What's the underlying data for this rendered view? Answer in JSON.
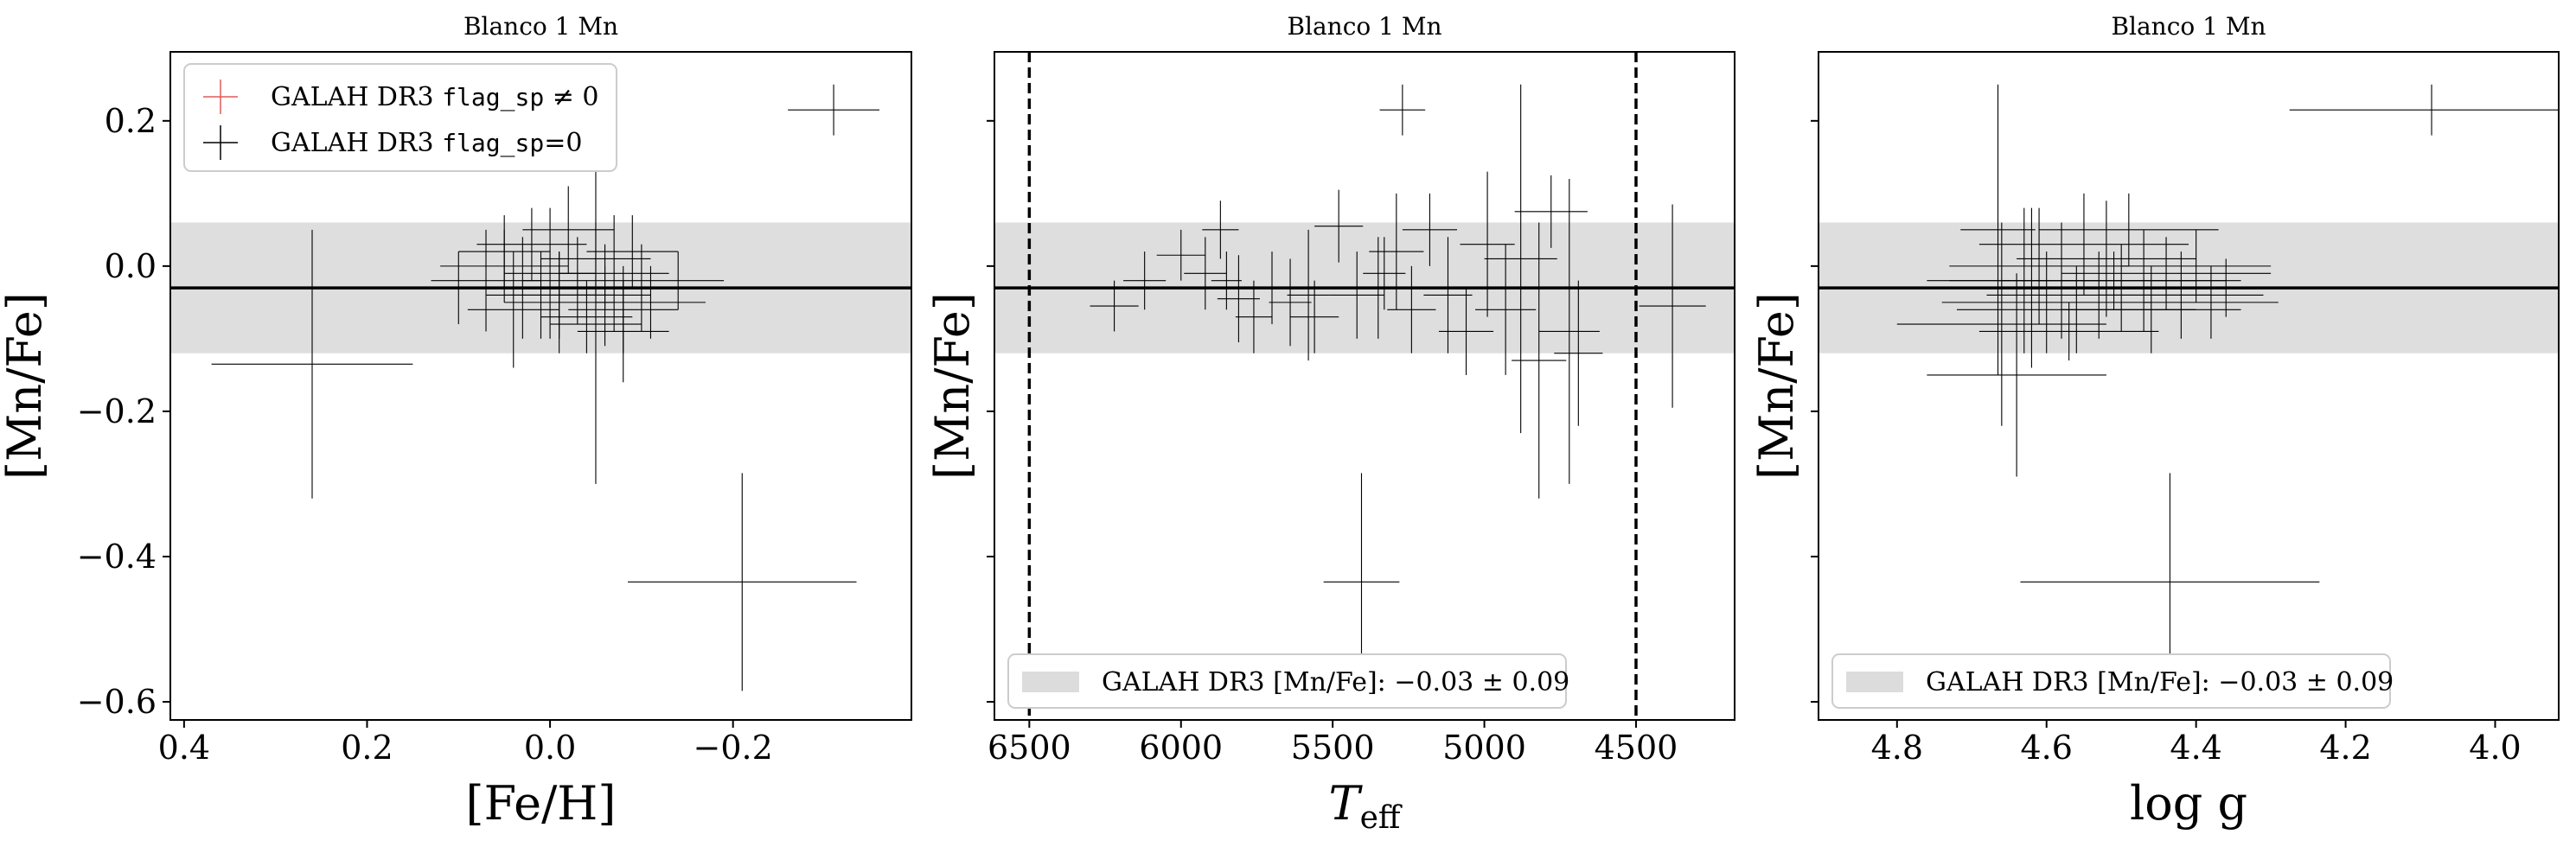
{
  "panels": [
    {
      "title": "Blanco 1 Mn",
      "xlabel": "[Fe/H]",
      "ylabel": "[Mn/Fe]",
      "xticks": [
        0.4,
        0.2,
        0.0,
        -0.2
      ],
      "xtick_labels": [
        "0.4",
        "0.2",
        "0.0",
        "−0.2"
      ],
      "yticks": [
        0.2,
        0.0,
        -0.2,
        -0.4,
        -0.6
      ],
      "ytick_labels": [
        "0.2",
        "0.0",
        "−0.2",
        "−0.4",
        "−0.6"
      ],
      "show_yticklabels": true,
      "legend": {
        "placement": "upper-left",
        "entries": [
          {
            "pre": "GALAH DR3 ",
            "mono": "flag_sp",
            "post": " ≠ 0",
            "color": "#e05a5a"
          },
          {
            "pre": "GALAH DR3 ",
            "mono": "flag_sp",
            "post": "=0",
            "color": "#000000"
          }
        ]
      }
    },
    {
      "title": "Blanco 1 Mn",
      "xlabel": "T",
      "xlabel_sub": "eff",
      "ylabel": "[Mn/Fe]",
      "xticks": [
        6500,
        6000,
        5500,
        5000,
        4500
      ],
      "xtick_labels": [
        "6500",
        "6000",
        "5500",
        "5000",
        "4500"
      ],
      "yticks": [
        0.2,
        0.0,
        -0.2,
        -0.4,
        -0.6
      ],
      "show_yticklabels": false,
      "vlines": [
        6500,
        4500
      ],
      "legend": {
        "placement": "lower-left",
        "entries": [
          {
            "text": "GALAH DR3 [Mn/Fe]: −0.03 ± 0.09",
            "color": "#dcdcdc"
          }
        ]
      }
    },
    {
      "title": "Blanco 1 Mn",
      "xlabel": "log g",
      "ylabel": "[Mn/Fe]",
      "xticks": [
        4.8,
        4.6,
        4.4,
        4.2,
        4.0
      ],
      "xtick_labels": [
        "4.8",
        "4.6",
        "4.4",
        "4.2",
        "4.0"
      ],
      "yticks": [
        0.2,
        0.0,
        -0.2,
        -0.4,
        -0.6
      ],
      "show_yticklabels": false,
      "legend": {
        "placement": "lower-left",
        "entries": [
          {
            "text": "GALAH DR3 [Mn/Fe]: −0.03 ± 0.09",
            "color": "#dcdcdc"
          }
        ]
      }
    }
  ],
  "chart_data": [
    {
      "type": "scatter",
      "title": "Blanco 1 Mn",
      "xlabel": "[Fe/H]",
      "ylabel": "[Mn/Fe]",
      "xlim": [
        0.415,
        -0.395
      ],
      "ylim": [
        -0.625,
        0.295
      ],
      "x_inverted": true,
      "mean": -0.03,
      "band": [
        -0.12,
        0.06
      ],
      "grid": false,
      "legend_placement": "upper-left",
      "series": [
        {
          "name": "GALAH DR3 flag_sp ≠ 0",
          "points": []
        },
        {
          "name": "GALAH DR3 flag_sp=0",
          "points": [
            {
              "x": 0.26,
              "y": -0.135,
              "xerr": 0.11,
              "yerr": 0.185
            },
            {
              "x": -0.21,
              "y": -0.435,
              "xerr": 0.125,
              "yerr": 0.15
            },
            {
              "x": -0.31,
              "y": 0.215,
              "xerr": 0.05,
              "yerr": 0.035
            },
            {
              "x": 0.1,
              "y": -0.03,
              "xerr": 0.06,
              "yerr": 0.05
            },
            {
              "x": 0.07,
              "y": -0.02,
              "xerr": 0.06,
              "yerr": 0.07
            },
            {
              "x": 0.05,
              "y": 0.0,
              "xerr": 0.07,
              "yerr": 0.05
            },
            {
              "x": 0.04,
              "y": -0.06,
              "xerr": 0.05,
              "yerr": 0.08
            },
            {
              "x": 0.02,
              "y": 0.03,
              "xerr": 0.06,
              "yerr": 0.05
            },
            {
              "x": 0.01,
              "y": -0.04,
              "xerr": 0.06,
              "yerr": 0.06
            },
            {
              "x": 0.0,
              "y": -0.01,
              "xerr": 0.05,
              "yerr": 0.09
            },
            {
              "x": -0.01,
              "y": -0.05,
              "xerr": 0.06,
              "yerr": 0.07
            },
            {
              "x": -0.02,
              "y": 0.05,
              "xerr": 0.05,
              "yerr": 0.06
            },
            {
              "x": -0.03,
              "y": -0.02,
              "xerr": 0.06,
              "yerr": 0.06
            },
            {
              "x": -0.04,
              "y": -0.07,
              "xerr": 0.05,
              "yerr": 0.05
            },
            {
              "x": -0.05,
              "y": 0.01,
              "xerr": 0.06,
              "yerr": 0.05
            },
            {
              "x": -0.06,
              "y": -0.04,
              "xerr": 0.05,
              "yerr": 0.07
            },
            {
              "x": -0.07,
              "y": -0.01,
              "xerr": 0.06,
              "yerr": 0.08
            },
            {
              "x": -0.08,
              "y": -0.06,
              "xerr": 0.06,
              "yerr": 0.06
            },
            {
              "x": -0.09,
              "y": 0.02,
              "xerr": 0.05,
              "yerr": 0.05
            },
            {
              "x": -0.1,
              "y": -0.03,
              "xerr": 0.07,
              "yerr": 0.06
            },
            {
              "x": -0.11,
              "y": -0.05,
              "xerr": 0.06,
              "yerr": 0.05
            },
            {
              "x": -0.06,
              "y": -0.03,
              "xerr": 0.04,
              "yerr": 0.03
            },
            {
              "x": -0.01,
              "y": -0.04,
              "xerr": 0.06,
              "yerr": 0.06
            },
            {
              "x": 0.03,
              "y": -0.03,
              "xerr": 0.05,
              "yerr": 0.07
            },
            {
              "x": -0.05,
              "y": -0.08,
              "xerr": 0.05,
              "yerr": 0.22
            },
            {
              "x": -0.14,
              "y": -0.02,
              "xerr": 0.05,
              "yerr": 0.04
            },
            {
              "x": -0.08,
              "y": -0.09,
              "xerr": 0.05,
              "yerr": 0.07
            },
            {
              "x": 0.05,
              "y": 0.02,
              "xerr": 0.05,
              "yerr": 0.05
            }
          ]
        }
      ]
    },
    {
      "type": "scatter",
      "title": "Blanco 1 Mn",
      "xlabel": "T_eff",
      "ylabel": "[Mn/Fe]",
      "xlim": [
        6615,
        4175
      ],
      "ylim": [
        -0.625,
        0.295
      ],
      "x_inverted": true,
      "vlines": [
        6500,
        4500
      ],
      "mean": -0.03,
      "band": [
        -0.12,
        0.06
      ],
      "grid": false,
      "legend_placement": "lower-left",
      "legend": [
        "GALAH DR3 [Mn/Fe]: −0.03 ± 0.09"
      ],
      "series": [
        {
          "name": "GALAH DR3 flag_sp=0",
          "points": [
            {
              "x": 5405,
              "y": -0.435,
              "xerr": 125,
              "yerr": 0.15
            },
            {
              "x": 5270,
              "y": 0.215,
              "xerr": 75,
              "yerr": 0.035
            },
            {
              "x": 4380,
              "y": -0.055,
              "xerr": 110,
              "yerr": 0.14
            },
            {
              "x": 6220,
              "y": -0.055,
              "xerr": 80,
              "yerr": 0.035
            },
            {
              "x": 6120,
              "y": -0.02,
              "xerr": 70,
              "yerr": 0.04
            },
            {
              "x": 6000,
              "y": 0.015,
              "xerr": 80,
              "yerr": 0.035
            },
            {
              "x": 5920,
              "y": -0.01,
              "xerr": 70,
              "yerr": 0.05
            },
            {
              "x": 5870,
              "y": 0.05,
              "xerr": 60,
              "yerr": 0.04
            },
            {
              "x": 5810,
              "y": -0.045,
              "xerr": 70,
              "yerr": 0.06
            },
            {
              "x": 5760,
              "y": -0.07,
              "xerr": 60,
              "yerr": 0.05
            },
            {
              "x": 5700,
              "y": -0.03,
              "xerr": 80,
              "yerr": 0.05
            },
            {
              "x": 5640,
              "y": -0.05,
              "xerr": 70,
              "yerr": 0.06
            },
            {
              "x": 5560,
              "y": -0.07,
              "xerr": 80,
              "yerr": 0.05
            },
            {
              "x": 5480,
              "y": 0.055,
              "xerr": 80,
              "yerr": 0.05
            },
            {
              "x": 5420,
              "y": -0.04,
              "xerr": 90,
              "yerr": 0.06
            },
            {
              "x": 5350,
              "y": -0.03,
              "xerr": 80,
              "yerr": 0.07
            },
            {
              "x": 5290,
              "y": 0.02,
              "xerr": 90,
              "yerr": 0.08
            },
            {
              "x": 5240,
              "y": -0.06,
              "xerr": 80,
              "yerr": 0.06
            },
            {
              "x": 5180,
              "y": 0.05,
              "xerr": 90,
              "yerr": 0.05
            },
            {
              "x": 5120,
              "y": -0.04,
              "xerr": 80,
              "yerr": 0.08
            },
            {
              "x": 5060,
              "y": -0.09,
              "xerr": 90,
              "yerr": 0.06
            },
            {
              "x": 4990,
              "y": 0.03,
              "xerr": 90,
              "yerr": 0.1
            },
            {
              "x": 4930,
              "y": -0.06,
              "xerr": 100,
              "yerr": 0.09
            },
            {
              "x": 4880,
              "y": 0.01,
              "xerr": 120,
              "yerr": 0.24
            },
            {
              "x": 4820,
              "y": -0.13,
              "xerr": 90,
              "yerr": 0.19
            },
            {
              "x": 4780,
              "y": 0.075,
              "xerr": 120,
              "yerr": 0.05
            },
            {
              "x": 4720,
              "y": -0.09,
              "xerr": 100,
              "yerr": 0.21
            },
            {
              "x": 4690,
              "y": -0.12,
              "xerr": 80,
              "yerr": 0.1
            },
            {
              "x": 5850,
              "y": -0.02,
              "xerr": 50,
              "yerr": 0.04
            },
            {
              "x": 5580,
              "y": -0.04,
              "xerr": 70,
              "yerr": 0.09
            },
            {
              "x": 5330,
              "y": -0.01,
              "xerr": 70,
              "yerr": 0.05
            }
          ]
        }
      ]
    },
    {
      "type": "scatter",
      "title": "Blanco 1 Mn",
      "xlabel": "log g",
      "ylabel": "[Mn/Fe]",
      "xlim": [
        4.905,
        3.915
      ],
      "ylim": [
        -0.625,
        0.295
      ],
      "x_inverted": true,
      "mean": -0.03,
      "band": [
        -0.12,
        0.06
      ],
      "grid": false,
      "legend_placement": "lower-left",
      "legend": [
        "GALAH DR3 [Mn/Fe]: −0.03 ± 0.09"
      ],
      "series": [
        {
          "name": "GALAH DR3 flag_sp=0",
          "points": [
            {
              "x": 4.435,
              "y": -0.435,
              "xerr": 0.2,
              "yerr": 0.15
            },
            {
              "x": 4.085,
              "y": 0.215,
              "xerr": 0.19,
              "yerr": 0.035
            },
            {
              "x": 4.665,
              "y": 0.05,
              "xerr": 0.05,
              "yerr": 0.2
            },
            {
              "x": 4.66,
              "y": -0.08,
              "xerr": 0.14,
              "yerr": 0.14
            },
            {
              "x": 4.64,
              "y": -0.15,
              "xerr": 0.12,
              "yerr": 0.14
            },
            {
              "x": 4.62,
              "y": -0.03,
              "xerr": 0.16,
              "yerr": 0.11
            },
            {
              "x": 4.61,
              "y": 0.0,
              "xerr": 0.12,
              "yerr": 0.08
            },
            {
              "x": 4.6,
              "y": -0.05,
              "xerr": 0.14,
              "yerr": 0.07
            },
            {
              "x": 4.58,
              "y": -0.02,
              "xerr": 0.18,
              "yerr": 0.08
            },
            {
              "x": 4.56,
              "y": -0.06,
              "xerr": 0.16,
              "yerr": 0.06
            },
            {
              "x": 4.55,
              "y": 0.03,
              "xerr": 0.14,
              "yerr": 0.07
            },
            {
              "x": 4.53,
              "y": -0.04,
              "xerr": 0.15,
              "yerr": 0.06
            },
            {
              "x": 4.52,
              "y": 0.01,
              "xerr": 0.12,
              "yerr": 0.08
            },
            {
              "x": 4.5,
              "y": -0.03,
              "xerr": 0.14,
              "yerr": 0.06
            },
            {
              "x": 4.49,
              "y": 0.05,
              "xerr": 0.12,
              "yerr": 0.05
            },
            {
              "x": 4.47,
              "y": -0.02,
              "xerr": 0.13,
              "yerr": 0.07
            },
            {
              "x": 4.46,
              "y": -0.06,
              "xerr": 0.12,
              "yerr": 0.06
            },
            {
              "x": 4.44,
              "y": -0.01,
              "xerr": 0.14,
              "yerr": 0.05
            },
            {
              "x": 4.42,
              "y": -0.04,
              "xerr": 0.11,
              "yerr": 0.06
            },
            {
              "x": 4.4,
              "y": 0.0,
              "xerr": 0.1,
              "yerr": 0.05
            },
            {
              "x": 4.38,
              "y": -0.05,
              "xerr": 0.09,
              "yerr": 0.05
            },
            {
              "x": 4.36,
              "y": -0.03,
              "xerr": 0.08,
              "yerr": 0.04
            },
            {
              "x": 4.63,
              "y": -0.02,
              "xerr": 0.1,
              "yerr": 0.1
            },
            {
              "x": 4.57,
              "y": -0.09,
              "xerr": 0.12,
              "yerr": 0.04
            },
            {
              "x": 4.51,
              "y": -0.02,
              "xerr": 0.15,
              "yerr": 0.04
            }
          ]
        }
      ]
    }
  ]
}
